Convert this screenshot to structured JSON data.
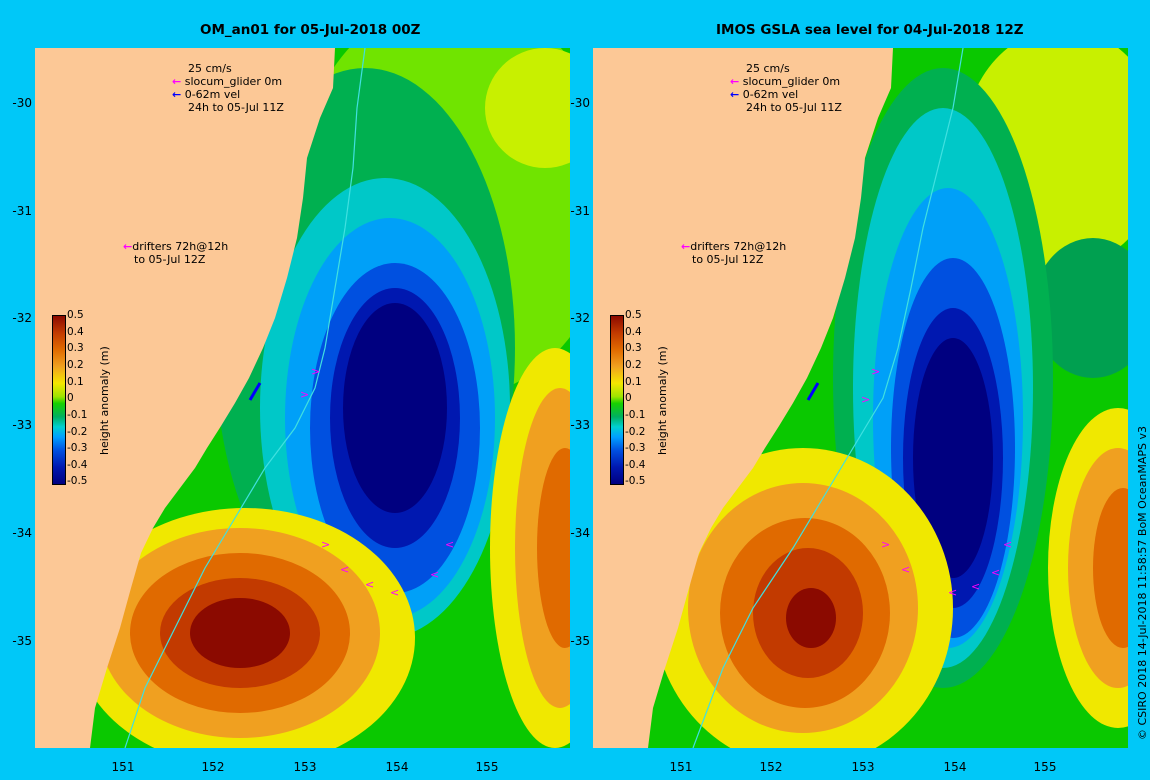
{
  "left_panel": {
    "title": "OM_an01 for 05-Jul-2018 00Z",
    "legend": {
      "scale": "25 cm/s",
      "glider": "slocum_glider 0m",
      "vel": "0-62m vel",
      "period": "24h to 05-Jul 11Z",
      "drifters_1": "drifters 72h@12h",
      "drifters_2": "to 05-Jul 12Z"
    }
  },
  "right_panel": {
    "title": "IMOS GSLA sea level  for 04-Jul-2018 12Z",
    "legend": {
      "scale": "25 cm/s",
      "glider": "slocum_glider 0m",
      "vel": "0-62m vel",
      "period": "24h to 05-Jul 11Z",
      "drifters_1": "drifters 72h@12h",
      "drifters_2": "to 05-Jul 12Z"
    }
  },
  "lat_ticks": [
    "-30",
    "-31",
    "-32",
    "-33",
    "-34",
    "-35"
  ],
  "lon_ticks": [
    "151",
    "152",
    "153",
    "154",
    "155"
  ],
  "colorbar": {
    "label": "height anomaly (m)",
    "ticks": [
      "0.5",
      "0.4",
      "0.3",
      "0.2",
      "0.1",
      "0",
      "-0.1",
      "-0.2",
      "-0.3",
      "-0.4",
      "-0.5"
    ]
  },
  "copyright": "© CSIRO 2018  14-Jul-2018 11:58:57 BoM OceanMAPS v3",
  "colors": {
    "background": "#00c8f8",
    "land": "#fcc896",
    "glider_arrow": "#ff00ff",
    "vel_arrow": "#0000ff"
  }
}
